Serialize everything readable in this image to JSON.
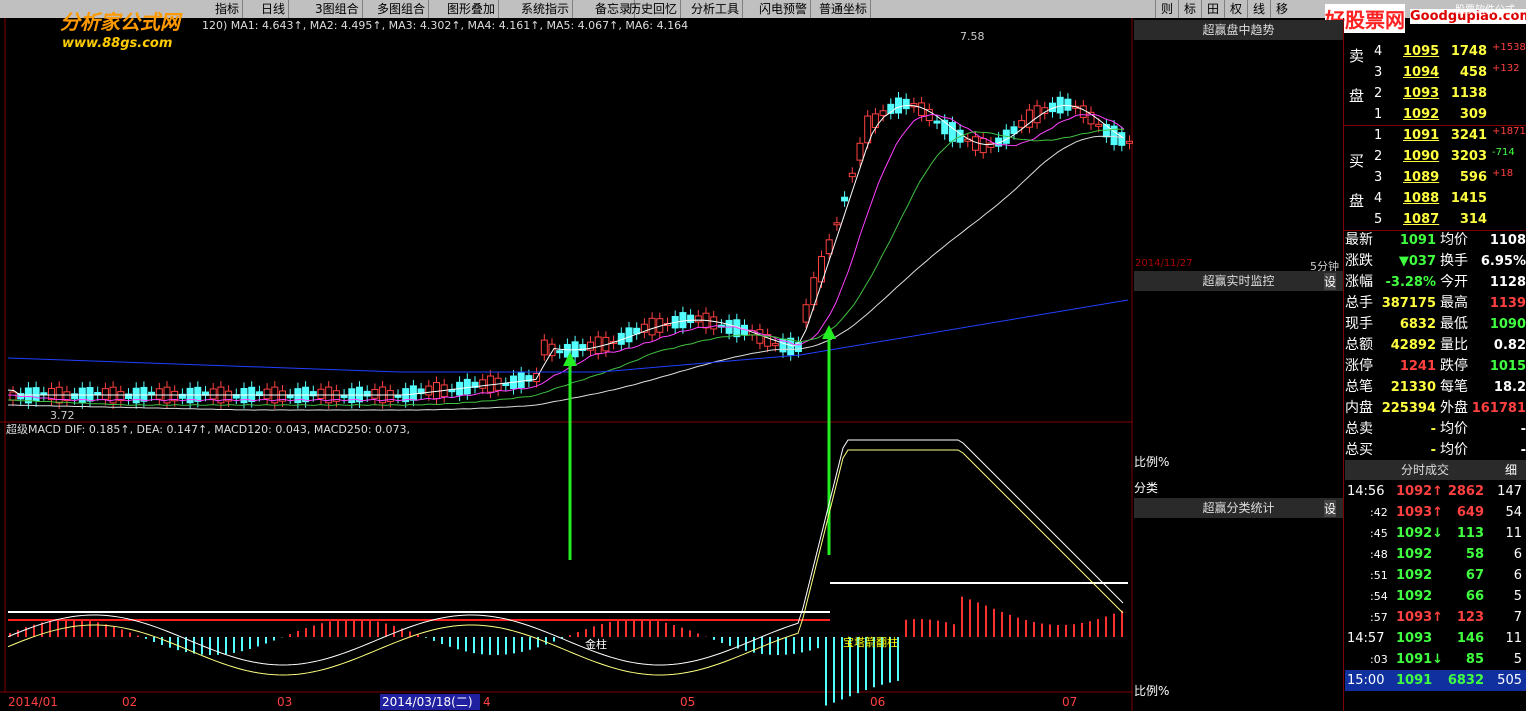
{
  "logo": {
    "title": "分析家公式网",
    "url": "www.88gs.com"
  },
  "toolbar": {
    "items": [
      "指标",
      "日线",
      "3图组合",
      "多图组合",
      "图形叠加",
      "系统指示",
      "备忘录",
      "历史回忆",
      "分析工具",
      "闪电预警",
      "普通坐标"
    ],
    "right": [
      "则",
      "标",
      "田",
      "权",
      "线",
      "移"
    ]
  },
  "watermark": {
    "title": "好股票网",
    "url": "Goodgupiao.com",
    "corner": "股票软件公式"
  },
  "main_chart": {
    "ma_legend": "120) MA1: 4.643↑, MA2: 4.495↑, MA3: 4.302↑, MA4: 4.161↑, MA5: 4.067↑, MA6: 4.164",
    "high_label": "7.58",
    "low_label": "3.72",
    "macd_legend": "超级MACD DIF: 0.185↑, DEA: 0.147↑, MACD120: 0.043, MACD250: 0.073,",
    "bar_labels": [
      "金柱",
      "宝塔箭翻柱"
    ],
    "dates": [
      "2014/01",
      "02",
      "03",
      "2014/03/18(二)",
      "4",
      "05",
      "06",
      "07"
    ]
  },
  "middle_panel": {
    "trend_title": "超赢盘中趋势",
    "trend_date": "2014/11/27",
    "trend_period": "5分钟",
    "monitor_title": "超赢实时监控",
    "monitor_set": "设",
    "ratio_label": "比例%",
    "category_label": "分类",
    "stats_title": "超赢分类统计",
    "stats_set": "设",
    "ratio_label_2": "比例%"
  },
  "order_book": {
    "sell_label": [
      "卖",
      "盘"
    ],
    "buy_label": [
      "买",
      "盘"
    ],
    "sell": [
      [
        "4",
        "1095",
        "1748",
        "+1538"
      ],
      [
        "3",
        "1094",
        "458",
        "+132"
      ],
      [
        "2",
        "1093",
        "1138",
        ""
      ],
      [
        "1",
        "1092",
        "309",
        ""
      ]
    ],
    "buy": [
      [
        "1",
        "1091",
        "3241",
        "+1871"
      ],
      [
        "2",
        "1090",
        "3203",
        "-714"
      ],
      [
        "3",
        "1089",
        "596",
        "+18"
      ],
      [
        "4",
        "1088",
        "1415",
        ""
      ],
      [
        "5",
        "1087",
        "314",
        ""
      ]
    ]
  },
  "quote": {
    "rows": [
      [
        "最新",
        "1091",
        "均价",
        "1108"
      ],
      [
        "涨跌",
        "▼037",
        "换手",
        "6.95%"
      ],
      [
        "涨幅",
        "-3.28%",
        "今开",
        "1128"
      ],
      [
        "总手",
        "387175",
        "最高",
        "1139"
      ],
      [
        "现手",
        "6832",
        "最低",
        "1090"
      ],
      [
        "总额",
        "42892",
        "量比",
        "0.82"
      ],
      [
        "涨停",
        "1241",
        "跌停",
        "1015"
      ],
      [
        "总笔",
        "21330",
        "每笔",
        "18.2"
      ],
      [
        "内盘",
        "225394",
        "外盘",
        "161781"
      ],
      [
        "总卖",
        "-",
        "均价",
        "-"
      ],
      [
        "总买",
        "-",
        "均价",
        "-"
      ]
    ]
  },
  "trades": {
    "title": "分时成交",
    "detail": "细",
    "rows": [
      [
        "14:56",
        "1092↑",
        "2862",
        "147"
      ],
      [
        ":42",
        "1093↑",
        "649",
        "54"
      ],
      [
        ":45",
        "1092↓",
        "113",
        "11"
      ],
      [
        ":48",
        "1092",
        "58",
        "6"
      ],
      [
        ":51",
        "1092",
        "67",
        "6"
      ],
      [
        ":54",
        "1092",
        "66",
        "5"
      ],
      [
        ":57",
        "1093↑",
        "123",
        "7"
      ],
      [
        "14:57",
        "1093",
        "146",
        "11"
      ],
      [
        ":03",
        "1091↓",
        "85",
        "5"
      ],
      [
        "15:00",
        "1091",
        "6832",
        "505"
      ]
    ]
  }
}
